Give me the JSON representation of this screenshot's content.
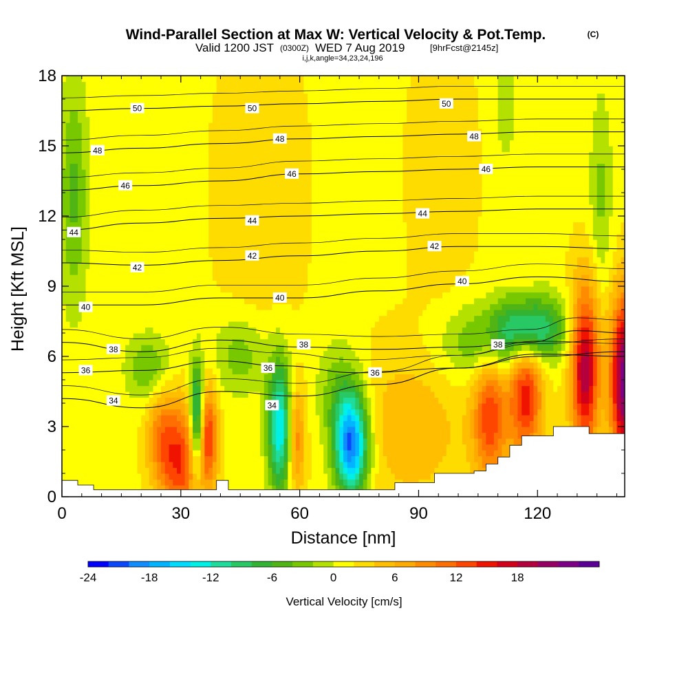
{
  "chart_data": {
    "type": "heatmap",
    "title": {
      "main": "Wind-Parallel Section at Max W: Vertical Velocity & Pot.Temp.",
      "copyright": "(C)",
      "valid_prefix": "Valid 1200 JST",
      "valid_utc": "(0300Z)",
      "valid_date": "WED 7 Aug 2019",
      "forecast": "[9hrFcst@2145z]",
      "section": "i,j,k,angle=34,23,24,196"
    },
    "xlabel": "Distance [nm]",
    "ylabel": "Height [Kft MSL]",
    "xlim": [
      0,
      142
    ],
    "ylim": [
      0,
      18
    ],
    "x_ticks": [
      0,
      30,
      60,
      90,
      120
    ],
    "y_ticks": [
      0,
      3,
      6,
      9,
      12,
      15,
      18
    ],
    "colorbar": {
      "label": "Vertical Velocity [cm/s]",
      "range": [
        -24,
        24
      ],
      "step": 2,
      "tick_values": [
        -24,
        -18,
        -12,
        -6,
        0,
        6,
        12,
        18
      ],
      "tick_labels": [
        "-24",
        "-18",
        "-12",
        "-6",
        "0",
        "6",
        "12",
        "18"
      ],
      "colors": [
        "#0000ff",
        "#0a46fa",
        "#0f8cff",
        "#00b4ff",
        "#00dcff",
        "#00f0e6",
        "#1edc9b",
        "#28c864",
        "#32b432",
        "#50b414",
        "#78c800",
        "#b4e100",
        "#ffff00",
        "#ffdc00",
        "#ffbe00",
        "#ffaa00",
        "#ff8c00",
        "#ff6e00",
        "#ff4600",
        "#f01400",
        "#d20019",
        "#b4003c",
        "#960064",
        "#7d0087",
        "#5a0096"
      ]
    },
    "vertical_velocity_features": [
      {
        "x": 3,
        "y": 13,
        "w": -6,
        "sx": 2.5,
        "sy": 3.5
      },
      {
        "x": 30,
        "y": 1.5,
        "w": 12,
        "sx": 3,
        "sy": 1.8
      },
      {
        "x": 34,
        "y": 3.5,
        "w": -14,
        "sx": 1.2,
        "sy": 1.6
      },
      {
        "x": 37,
        "y": 2.5,
        "w": 12,
        "sx": 1.6,
        "sy": 1.6
      },
      {
        "x": 25,
        "y": 2.5,
        "w": 8,
        "sx": 2.5,
        "sy": 1.6
      },
      {
        "x": 22,
        "y": 5.5,
        "w": -6,
        "sx": 4,
        "sy": 1
      },
      {
        "x": 45,
        "y": 6,
        "w": -5,
        "sx": 5,
        "sy": 1.2
      },
      {
        "x": 55,
        "y": 3,
        "w": -16,
        "sx": 2.2,
        "sy": 2
      },
      {
        "x": 59,
        "y": 2.5,
        "w": 9,
        "sx": 1.6,
        "sy": 1.6
      },
      {
        "x": 73,
        "y": 2.2,
        "w": -22,
        "sx": 3,
        "sy": 1.5
      },
      {
        "x": 70,
        "y": 4.5,
        "w": -5,
        "sx": 4,
        "sy": 1.5
      },
      {
        "x": 88,
        "y": 3,
        "w": 4,
        "sx": 10,
        "sy": 2.5
      },
      {
        "x": 108,
        "y": 3.5,
        "w": 12,
        "sx": 3,
        "sy": 2
      },
      {
        "x": 117,
        "y": 4.5,
        "w": 14,
        "sx": 3,
        "sy": 2
      },
      {
        "x": 118,
        "y": 7.2,
        "w": -14,
        "sx": 6,
        "sy": 1
      },
      {
        "x": 106,
        "y": 6.5,
        "w": -6,
        "sx": 8,
        "sy": 1.2
      },
      {
        "x": 132,
        "y": 5.5,
        "w": 18,
        "sx": 2.5,
        "sy": 2.5
      },
      {
        "x": 142,
        "y": 5,
        "w": 22,
        "sx": 2.5,
        "sy": 2.5
      },
      {
        "x": 136,
        "y": 13,
        "w": -4,
        "sx": 2,
        "sy": 3
      },
      {
        "x": 112,
        "y": 17,
        "w": -3,
        "sx": 2,
        "sy": 2
      },
      {
        "x": 50,
        "y": 13,
        "w": 2,
        "sx": 8,
        "sy": 5
      },
      {
        "x": 96,
        "y": 14,
        "w": 2,
        "sx": 6,
        "sy": 4
      }
    ],
    "terrain": [
      [
        0,
        0.7
      ],
      [
        4,
        0.5
      ],
      [
        8,
        0.3
      ],
      [
        39,
        0.7
      ],
      [
        42,
        0.3
      ],
      [
        81,
        0.3
      ],
      [
        84,
        0.6
      ],
      [
        90,
        0.6
      ],
      [
        94,
        1.0
      ],
      [
        104,
        1.1
      ],
      [
        107,
        1.4
      ],
      [
        110,
        1.7
      ],
      [
        113,
        2.2
      ],
      [
        116,
        2.6
      ],
      [
        124,
        3.0
      ],
      [
        131,
        3.0
      ],
      [
        133,
        2.7
      ],
      [
        142,
        2.7
      ]
    ],
    "potential_temperature": [
      {
        "value": 34,
        "label": "34",
        "label_at": [
          13,
          4.1
        ],
        "points": [
          [
            0,
            4.2
          ],
          [
            20,
            3.8
          ],
          [
            40,
            4.5
          ],
          [
            60,
            4.3
          ],
          [
            80,
            4.8
          ],
          [
            100,
            5.5
          ],
          [
            120,
            6.1
          ],
          [
            142,
            6.0
          ]
        ]
      },
      {
        "value": 36,
        "label": "36",
        "label_at": [
          6,
          5.4
        ],
        "points": [
          [
            0,
            5.3
          ],
          [
            20,
            5.4
          ],
          [
            40,
            5.8
          ],
          [
            55,
            5.6
          ],
          [
            75,
            5.3
          ],
          [
            100,
            5.5
          ],
          [
            120,
            6.0
          ],
          [
            142,
            6.2
          ]
        ]
      },
      {
        "value": 38,
        "label": "38",
        "label_at": [
          13,
          6.3
        ],
        "points": [
          [
            0,
            6.6
          ],
          [
            20,
            6.2
          ],
          [
            40,
            6.7
          ],
          [
            60,
            6.4
          ],
          [
            80,
            6.3
          ],
          [
            100,
            6.4
          ],
          [
            118,
            6.6
          ],
          [
            130,
            7.1
          ],
          [
            142,
            7.0
          ]
        ]
      },
      {
        "value": 40,
        "label": "40",
        "label_at": [
          6,
          8.1
        ],
        "points": [
          [
            0,
            8.2
          ],
          [
            20,
            8.2
          ],
          [
            40,
            8.5
          ],
          [
            60,
            8.5
          ],
          [
            80,
            8.8
          ],
          [
            100,
            9.1
          ],
          [
            120,
            9.4
          ],
          [
            142,
            9.2
          ]
        ]
      },
      {
        "value": 42,
        "label": "42",
        "label_at": [
          19,
          9.8
        ],
        "points": [
          [
            0,
            10.0
          ],
          [
            20,
            9.9
          ],
          [
            40,
            10.1
          ],
          [
            60,
            10.3
          ],
          [
            80,
            10.5
          ],
          [
            100,
            10.7
          ],
          [
            120,
            10.7
          ],
          [
            142,
            10.6
          ]
        ]
      },
      {
        "value": 44,
        "label": "44",
        "label_at": [
          3,
          11.3
        ],
        "points": [
          [
            0,
            11.4
          ],
          [
            20,
            11.7
          ],
          [
            40,
            11.9
          ],
          [
            60,
            12.0
          ],
          [
            80,
            12.1
          ],
          [
            100,
            12.2
          ],
          [
            120,
            12.3
          ],
          [
            142,
            12.3
          ]
        ]
      },
      {
        "value": 46,
        "label": "46",
        "label_at": [
          16,
          13.3
        ],
        "points": [
          [
            0,
            13.1
          ],
          [
            20,
            13.3
          ],
          [
            40,
            13.5
          ],
          [
            60,
            13.8
          ],
          [
            80,
            13.9
          ],
          [
            100,
            14.0
          ],
          [
            120,
            14.1
          ],
          [
            142,
            14.1
          ]
        ]
      },
      {
        "value": 48,
        "label": "48",
        "label_at": [
          9,
          14.8
        ],
        "points": [
          [
            0,
            14.7
          ],
          [
            20,
            14.9
          ],
          [
            40,
            15.1
          ],
          [
            60,
            15.3
          ],
          [
            80,
            15.4
          ],
          [
            100,
            15.5
          ],
          [
            120,
            15.6
          ],
          [
            142,
            15.6
          ]
        ]
      },
      {
        "value": 50,
        "label": "50",
        "label_at": [
          19,
          16.6
        ],
        "points": [
          [
            0,
            16.5
          ],
          [
            20,
            16.6
          ],
          [
            40,
            16.7
          ],
          [
            60,
            16.8
          ],
          [
            80,
            16.9
          ],
          [
            100,
            17.0
          ],
          [
            120,
            17.0
          ],
          [
            142,
            17.0
          ]
        ]
      }
    ],
    "extra_theta_labels": [
      {
        "label": "50",
        "at": [
          48,
          16.6
        ]
      },
      {
        "label": "50",
        "at": [
          97,
          16.8
        ]
      },
      {
        "label": "48",
        "at": [
          55,
          15.3
        ]
      },
      {
        "label": "48",
        "at": [
          104,
          15.4
        ]
      },
      {
        "label": "46",
        "at": [
          58,
          13.8
        ]
      },
      {
        "label": "46",
        "at": [
          107,
          14.0
        ]
      },
      {
        "label": "44",
        "at": [
          48,
          11.8
        ]
      },
      {
        "label": "44",
        "at": [
          91,
          12.1
        ]
      },
      {
        "label": "42",
        "at": [
          48,
          10.3
        ]
      },
      {
        "label": "42",
        "at": [
          94,
          10.7
        ]
      },
      {
        "label": "40",
        "at": [
          55,
          8.5
        ]
      },
      {
        "label": "40",
        "at": [
          101,
          9.2
        ]
      },
      {
        "label": "38",
        "at": [
          61,
          6.5
        ]
      },
      {
        "label": "38",
        "at": [
          110,
          6.5
        ]
      },
      {
        "label": "36",
        "at": [
          52,
          5.5
        ]
      },
      {
        "label": "36",
        "at": [
          79,
          5.3
        ]
      },
      {
        "label": "34",
        "at": [
          53,
          3.9
        ]
      }
    ]
  }
}
